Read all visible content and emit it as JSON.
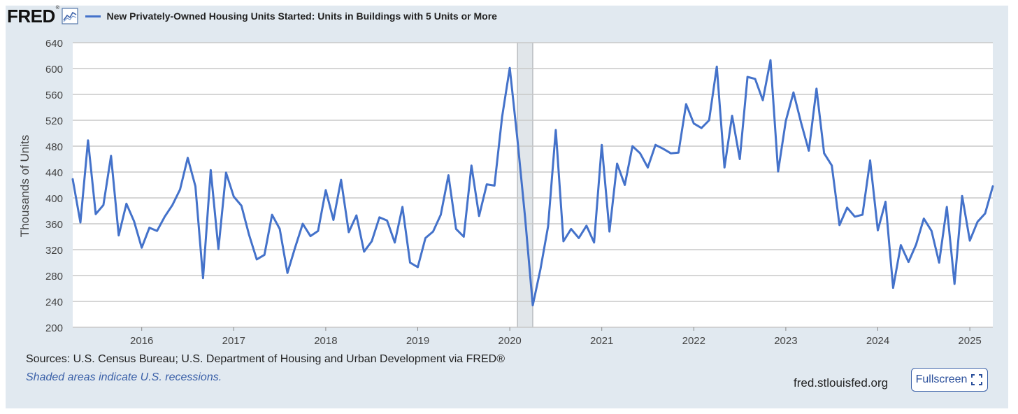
{
  "header": {
    "logo": "FRED",
    "logo_mark": "®",
    "series_title": "New Privately-Owned Housing Units Started: Units in Buildings with 5 Units or More"
  },
  "footer": {
    "sources": "Sources: U.S. Census Bureau; U.S. Department of Housing and Urban Development via FRED®",
    "recession_note": "Shaded areas indicate U.S. recessions.",
    "site": "fred.stlouisfed.org",
    "fullscreen_label": "Fullscreen"
  },
  "colors": {
    "line": "#4472ca",
    "panel": "#e1e9f0",
    "recession": "#e1e6ea",
    "grid": "#c8c8c8"
  },
  "chart_data": {
    "type": "line",
    "ylabel": "Thousands of Units",
    "xlabel": "",
    "ylim": [
      200,
      640
    ],
    "yticks": [
      200,
      240,
      280,
      320,
      360,
      400,
      440,
      480,
      520,
      560,
      600,
      640
    ],
    "xlim": [
      "2015-04",
      "2025-04"
    ],
    "xticks": [
      "2016",
      "2017",
      "2018",
      "2019",
      "2020",
      "2021",
      "2022",
      "2023",
      "2024",
      "2025"
    ],
    "grid": true,
    "recessions": [
      {
        "start": "2020-02",
        "end": "2020-04"
      }
    ],
    "series": [
      {
        "name": "New Privately-Owned Housing Units Started: Units in Buildings with 5 Units or More",
        "x": [
          "2015-04",
          "2015-05",
          "2015-06",
          "2015-07",
          "2015-08",
          "2015-09",
          "2015-10",
          "2015-11",
          "2015-12",
          "2016-01",
          "2016-02",
          "2016-03",
          "2016-04",
          "2016-05",
          "2016-06",
          "2016-07",
          "2016-08",
          "2016-09",
          "2016-10",
          "2016-11",
          "2016-12",
          "2017-01",
          "2017-02",
          "2017-03",
          "2017-04",
          "2017-05",
          "2017-06",
          "2017-07",
          "2017-08",
          "2017-09",
          "2017-10",
          "2017-11",
          "2017-12",
          "2018-01",
          "2018-02",
          "2018-03",
          "2018-04",
          "2018-05",
          "2018-06",
          "2018-07",
          "2018-08",
          "2018-09",
          "2018-10",
          "2018-11",
          "2018-12",
          "2019-01",
          "2019-02",
          "2019-03",
          "2019-04",
          "2019-05",
          "2019-06",
          "2019-07",
          "2019-08",
          "2019-09",
          "2019-10",
          "2019-11",
          "2019-12",
          "2020-01",
          "2020-02",
          "2020-03",
          "2020-04",
          "2020-05",
          "2020-06",
          "2020-07",
          "2020-08",
          "2020-09",
          "2020-10",
          "2020-11",
          "2020-12",
          "2021-01",
          "2021-02",
          "2021-03",
          "2021-04",
          "2021-05",
          "2021-06",
          "2021-07",
          "2021-08",
          "2021-09",
          "2021-10",
          "2021-11",
          "2021-12",
          "2022-01",
          "2022-02",
          "2022-03",
          "2022-04",
          "2022-05",
          "2022-06",
          "2022-07",
          "2022-08",
          "2022-09",
          "2022-10",
          "2022-11",
          "2022-12",
          "2023-01",
          "2023-02",
          "2023-03",
          "2023-04",
          "2023-05",
          "2023-06",
          "2023-07",
          "2023-08",
          "2023-09",
          "2023-10",
          "2023-11",
          "2023-12",
          "2024-01",
          "2024-02",
          "2024-03",
          "2024-04",
          "2024-05",
          "2024-06",
          "2024-07",
          "2024-08",
          "2024-09",
          "2024-10",
          "2024-11",
          "2024-12",
          "2025-01",
          "2025-02",
          "2025-03",
          "2025-04"
        ],
        "values": [
          429,
          362,
          489,
          375,
          389,
          465,
          342,
          391,
          364,
          323,
          354,
          349,
          371,
          389,
          413,
          462,
          418,
          276,
          443,
          321,
          439,
          402,
          388,
          343,
          305,
          312,
          374,
          352,
          284,
          323,
          360,
          341,
          349,
          412,
          366,
          428,
          347,
          373,
          317,
          333,
          370,
          365,
          331,
          386,
          300,
          293,
          338,
          348,
          374,
          435,
          352,
          340,
          450,
          372,
          421,
          419,
          525,
          601,
          490,
          370,
          234,
          290,
          356,
          505,
          333,
          352,
          338,
          357,
          331,
          482,
          348,
          453,
          420,
          480,
          469,
          447,
          482,
          476,
          469,
          470,
          545,
          515,
          508,
          520,
          603,
          447,
          527,
          460,
          587,
          584,
          551,
          613,
          441,
          519,
          563,
          516,
          473,
          569,
          469,
          450,
          358,
          385,
          371,
          374,
          458,
          350,
          394,
          261,
          327,
          301,
          328,
          368,
          349,
          300,
          386,
          267,
          403,
          334,
          363,
          376,
          418
        ]
      }
    ]
  }
}
